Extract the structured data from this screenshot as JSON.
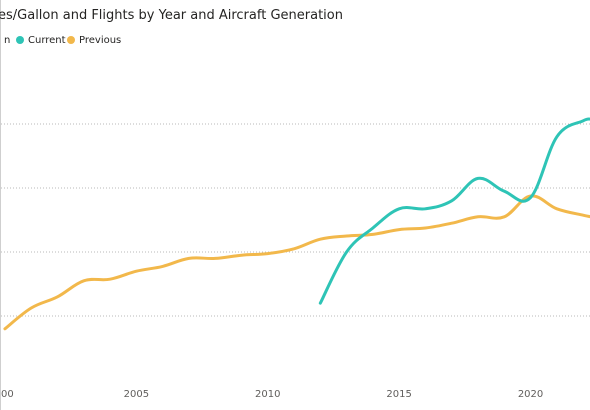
{
  "chart_data": {
    "type": "line",
    "title": "es/Gallon and Flights by Year and Aircraft Generation",
    "xlabel": "",
    "ylabel": "",
    "legend": {
      "position": "top-left",
      "entries": [
        {
          "name": "Current",
          "color": "#2EC4B6"
        },
        {
          "name": "Previous",
          "color": "#F2B84B"
        }
      ],
      "partial_first_glyph": "n"
    },
    "x_ticks": [
      "00",
      "2005",
      "2010",
      "2015",
      "2020"
    ],
    "xlim": [
      1999.85,
      2022.3
    ],
    "ylim": [
      0,
      1
    ],
    "y_gridlines": [
      0.2,
      0.4,
      0.6,
      0.8
    ],
    "grid": true,
    "series": [
      {
        "name": "Current",
        "color": "#2EC4B6",
        "x": [
          2012.0,
          2013.0,
          2014.0,
          2015.0,
          2016.0,
          2017.0,
          2018.0,
          2019.0,
          2020.0,
          2021.0,
          2022.0,
          2022.3
        ],
        "y": [
          0.24,
          0.4,
          0.475,
          0.535,
          0.535,
          0.56,
          0.63,
          0.59,
          0.57,
          0.76,
          0.81,
          0.815
        ]
      },
      {
        "name": "Previous",
        "color": "#F2B84B",
        "x": [
          2000.0,
          2001.0,
          2002.0,
          2003.0,
          2004.0,
          2005.0,
          2006.0,
          2007.0,
          2008.0,
          2009.0,
          2010.0,
          2011.0,
          2012.0,
          2013.0,
          2014.0,
          2015.0,
          2016.0,
          2017.0,
          2018.0,
          2019.0,
          2020.0,
          2021.0,
          2022.0,
          2022.3
        ],
        "y": [
          0.16,
          0.225,
          0.26,
          0.31,
          0.315,
          0.34,
          0.355,
          0.38,
          0.38,
          0.39,
          0.395,
          0.41,
          0.44,
          0.45,
          0.455,
          0.47,
          0.475,
          0.49,
          0.51,
          0.51,
          0.575,
          0.535,
          0.515,
          0.51
        ]
      }
    ]
  }
}
